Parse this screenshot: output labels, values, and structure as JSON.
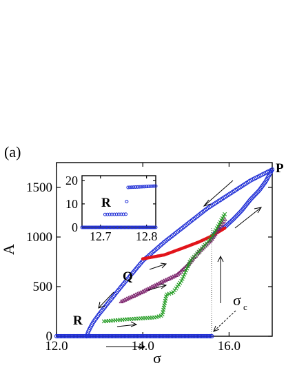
{
  "panel_label": "(a)",
  "colors": {
    "blue": "#1f2ed6",
    "red": "#e2141b",
    "green": "#1f9a1f",
    "purple": "#7a1f6a",
    "axis": "#000000"
  },
  "chart_data": [
    {
      "type": "scatter",
      "title": "",
      "xlabel": "σ",
      "ylabel": "A",
      "xlim": [
        12.0,
        17.0
      ],
      "ylim": [
        0,
        1750
      ],
      "xticks": [
        12.0,
        14.0,
        16.0
      ],
      "xtick_labels": [
        "12.0",
        "14.0",
        "16.0"
      ],
      "yticks": [
        0,
        500,
        1000,
        1500
      ],
      "ytick_labels": [
        "0",
        "500",
        "1000",
        "1500"
      ],
      "annotations": {
        "P": {
          "text": "P",
          "x": 17.0,
          "y": 1680
        },
        "Q": {
          "text": "Q",
          "x": 13.45,
          "y": 360
        },
        "R": {
          "text": "R",
          "x": 12.75,
          "y": 120
        },
        "sigma_c": {
          "text": "σ",
          "sub": "c",
          "x": 15.6
        }
      },
      "series": [
        {
          "marker": "open-circle",
          "color": "#1f2ed6",
          "segments": [
            {
              "x": [
                12.0,
                15.6
              ],
              "y": [
                0,
                0
              ],
              "n": 120
            },
            {
              "x": [
                15.6,
                15.62
              ],
              "y": [
                0,
                1005
              ],
              "n": 0
            },
            {
              "points": [
                [
                  15.6,
                  1005
                ],
                [
                  15.7,
                  1050
                ],
                [
                  15.9,
                  1100
                ],
                [
                  16.1,
                  1180
                ],
                [
                  16.3,
                  1270
                ],
                [
                  16.5,
                  1380
                ],
                [
                  16.7,
                  1470
                ],
                [
                  16.85,
                  1560
                ],
                [
                  17.0,
                  1680
                ]
              ],
              "n": 60
            },
            {
              "points": [
                [
                  17.0,
                  1680
                ],
                [
                  16.5,
                  1570
                ],
                [
                  16.0,
                  1430
                ],
                [
                  15.5,
                  1290
                ],
                [
                  15.0,
                  1120
                ],
                [
                  14.5,
                  950
                ],
                [
                  14.0,
                  760
                ],
                [
                  13.5,
                  500
                ],
                [
                  13.0,
                  230
                ],
                [
                  12.85,
                  140
                ],
                [
                  12.75,
                  60
                ],
                [
                  12.7,
                  0
                ]
              ],
              "n": 140
            }
          ]
        },
        {
          "marker": "filled-dot",
          "color": "#e2141b",
          "segments": [
            {
              "points": [
                [
                  14.0,
                  780
                ],
                [
                  14.5,
                  820
                ],
                [
                  15.0,
                  900
                ],
                [
                  15.3,
                  950
                ],
                [
                  15.6,
                  1010
                ],
                [
                  15.9,
                  1090
                ]
              ],
              "n": 70
            }
          ]
        },
        {
          "marker": "triangle",
          "color": "#7a1f6a",
          "segments": [
            {
              "points": [
                [
                  13.5,
                  350
                ],
                [
                  14.0,
                  450
                ],
                [
                  14.5,
                  560
                ],
                [
                  14.8,
                  620
                ],
                [
                  15.0,
                  700
                ],
                [
                  15.3,
                  850
                ],
                [
                  15.6,
                  980
                ],
                [
                  15.9,
                  1180
                ]
              ],
              "n": 70
            }
          ]
        },
        {
          "marker": "cross",
          "color": "#1f9a1f",
          "segments": [
            {
              "points": [
                [
                  13.1,
                  150
                ],
                [
                  13.6,
                  170
                ],
                [
                  14.3,
                  190
                ],
                [
                  14.45,
                  210
                ],
                [
                  14.55,
                  420
                ],
                [
                  14.7,
                  440
                ],
                [
                  14.9,
                  560
                ],
                [
                  15.1,
                  760
                ],
                [
                  15.4,
                  900
                ],
                [
                  15.6,
                  1000
                ],
                [
                  15.9,
                  1230
                ]
              ],
              "n": 80
            }
          ]
        }
      ]
    },
    {
      "type": "scatter",
      "title": "",
      "inset": true,
      "xlim": [
        12.66,
        12.82
      ],
      "ylim": [
        0,
        22
      ],
      "xticks": [
        12.7,
        12.8
      ],
      "xtick_labels": [
        "12.7",
        "12.8"
      ],
      "yticks": [
        0,
        10,
        20
      ],
      "ytick_labels": [
        "0",
        "10",
        "20"
      ],
      "annotations": {
        "R": {
          "text": "R",
          "x": 12.69,
          "y": 11
        }
      },
      "series": [
        {
          "marker": "open-circle",
          "color": "#1f2ed6",
          "segments": [
            {
              "x": [
                12.66,
                12.82
              ],
              "y": [
                0,
                0
              ],
              "n": 55
            },
            {
              "x": [
                12.71,
                12.755
              ],
              "y": [
                5.5,
                5.6
              ],
              "n": 10
            },
            {
              "x": [
                12.757,
                12.757
              ],
              "y": [
                11,
                11
              ],
              "n": 1
            },
            {
              "x": [
                12.76,
                12.82
              ],
              "y": [
                17.0,
                17.6
              ],
              "n": 16
            }
          ]
        }
      ]
    }
  ]
}
